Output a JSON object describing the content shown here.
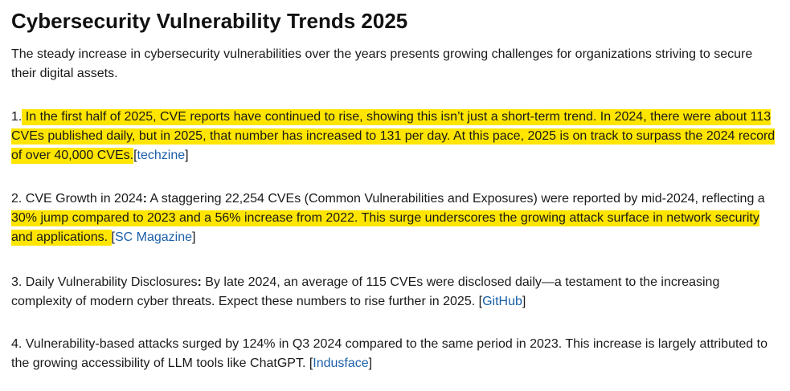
{
  "title": "Cybersecurity Vulnerability Trends 2025",
  "intro": "The steady increase in cybersecurity vulnerabilities over the years presents growing challenges for organizations striving to secure their digital assets.",
  "items": [
    {
      "num": "1.",
      "plain": "",
      "highlight": " In the first half of 2025, CVE reports have continued to rise, showing this isn’t just a short-term trend. In 2024, there were about 113 CVEs published daily, but in 2025, that number has increased to 131 per day. At this pace, 2025 is on track to surpass the 2024 record of over 40,000 CVEs.",
      "after": "",
      "source": "techzine"
    },
    {
      "num": "2.",
      "heading": "CVE Growth in 2024",
      "colon": ":",
      "plain": " A staggering 22,254 CVEs (Common Vulnerabilities and Exposures) were reported by mid-2024, reflecting a ",
      "highlight": "30% jump compared to 2023 and a 56% increase from 2022. This surge underscores the growing attack surface in network security and applications. ",
      "source": "SC Magazine"
    },
    {
      "num": "3.",
      "heading": "Daily Vulnerability Disclosures",
      "colon": ":",
      "plain": " By late 2024, an average of 115 CVEs were disclosed daily—a testament to the increasing complexity of modern cyber threats. Expect these numbers to rise further in 2025. ",
      "source": "GitHub"
    },
    {
      "num": "4.",
      "plain": "Vulnerability-based attacks surged by 124% in Q3 2024 compared to the same period in 2023. This increase is largely attributed to the growing accessibility of LLM tools like ChatGPT. ",
      "source": "Indusface"
    }
  ],
  "colors": {
    "highlight": "#ffe500",
    "link": "#1a5fa8",
    "text": "#1a1a1a"
  }
}
